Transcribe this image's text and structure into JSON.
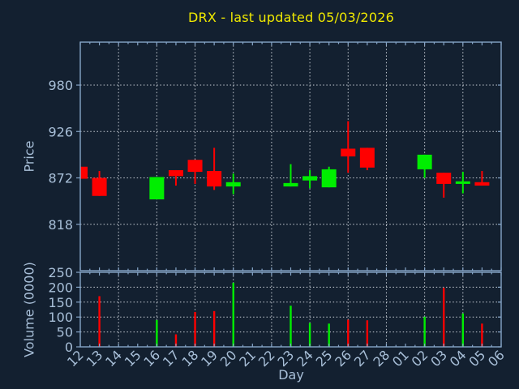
{
  "chart_data": {
    "type": "candlestick",
    "title": "DRX - last updated 05/03/2026",
    "xlabel": "Day",
    "price_ylabel": "Price",
    "volume_ylabel": "Volume (0000)",
    "days": [
      "12",
      "13",
      "14",
      "15",
      "16",
      "17",
      "18",
      "19",
      "20",
      "21",
      "22",
      "23",
      "24",
      "25",
      "26",
      "27",
      "28",
      "01",
      "02",
      "03",
      "04",
      "05",
      "06"
    ],
    "price_ticks": [
      818,
      872,
      926,
      980
    ],
    "price_range": [
      764,
      1030
    ],
    "volume_ticks": [
      0,
      50,
      100,
      150,
      200,
      250
    ],
    "volume_range": [
      0,
      250
    ],
    "grid": "dotted, horizontal at price/volume ticks, vertical every second day",
    "legend_position": "none",
    "candles": [
      {
        "day": "12",
        "open": 885,
        "high": 885,
        "low": 871,
        "close": 871,
        "dir": "down"
      },
      {
        "day": "13",
        "open": 872,
        "high": 880,
        "low": 851,
        "close": 851,
        "dir": "down"
      },
      {
        "day": "16",
        "open": 847,
        "high": 873,
        "low": 847,
        "close": 873,
        "dir": "up"
      },
      {
        "day": "17",
        "open": 881,
        "high": 881,
        "low": 863,
        "close": 874,
        "dir": "down"
      },
      {
        "day": "18",
        "open": 893,
        "high": 893,
        "low": 865,
        "close": 879,
        "dir": "down"
      },
      {
        "day": "19",
        "open": 880,
        "high": 907,
        "low": 858,
        "close": 862,
        "dir": "down"
      },
      {
        "day": "20",
        "open": 862,
        "high": 877,
        "low": 853,
        "close": 867,
        "dir": "up"
      },
      {
        "day": "23",
        "open": 862,
        "high": 888,
        "low": 862,
        "close": 866,
        "dir": "up"
      },
      {
        "day": "24",
        "open": 869,
        "high": 881,
        "low": 860,
        "close": 874,
        "dir": "up"
      },
      {
        "day": "25",
        "open": 861,
        "high": 885,
        "low": 861,
        "close": 882,
        "dir": "up"
      },
      {
        "day": "26",
        "open": 906,
        "high": 938,
        "low": 878,
        "close": 897,
        "dir": "down"
      },
      {
        "day": "27",
        "open": 907,
        "high": 907,
        "low": 881,
        "close": 884,
        "dir": "down"
      },
      {
        "day": "02",
        "open": 882,
        "high": 899,
        "low": 872,
        "close": 899,
        "dir": "up"
      },
      {
        "day": "03",
        "open": 878,
        "high": 878,
        "low": 849,
        "close": 865,
        "dir": "down"
      },
      {
        "day": "04",
        "open": 865,
        "high": 879,
        "low": 854,
        "close": 868,
        "dir": "up"
      },
      {
        "day": "05",
        "open": 867,
        "high": 880,
        "low": 863,
        "close": 863,
        "dir": "down"
      }
    ],
    "volumes": [
      {
        "day": "13",
        "value": 170,
        "dir": "down"
      },
      {
        "day": "16",
        "value": 90,
        "dir": "up"
      },
      {
        "day": "17",
        "value": 42,
        "dir": "down"
      },
      {
        "day": "18",
        "value": 117,
        "dir": "down"
      },
      {
        "day": "19",
        "value": 120,
        "dir": "down"
      },
      {
        "day": "20",
        "value": 215,
        "dir": "up"
      },
      {
        "day": "23",
        "value": 138,
        "dir": "up"
      },
      {
        "day": "24",
        "value": 80,
        "dir": "up"
      },
      {
        "day": "25",
        "value": 78,
        "dir": "up"
      },
      {
        "day": "26",
        "value": 91,
        "dir": "down"
      },
      {
        "day": "27",
        "value": 89,
        "dir": "down"
      },
      {
        "day": "02",
        "value": 101,
        "dir": "up"
      },
      {
        "day": "03",
        "value": 198,
        "dir": "down"
      },
      {
        "day": "04",
        "value": 112,
        "dir": "up"
      },
      {
        "day": "05",
        "value": 78,
        "dir": "down"
      }
    ],
    "colors": {
      "up": "#00ee00",
      "down": "#ff0000",
      "title": "#f0e900",
      "axis": "#86a5c8",
      "text": "#a8bfd8",
      "grid": "#c6ccd4",
      "background": "#132030"
    }
  }
}
